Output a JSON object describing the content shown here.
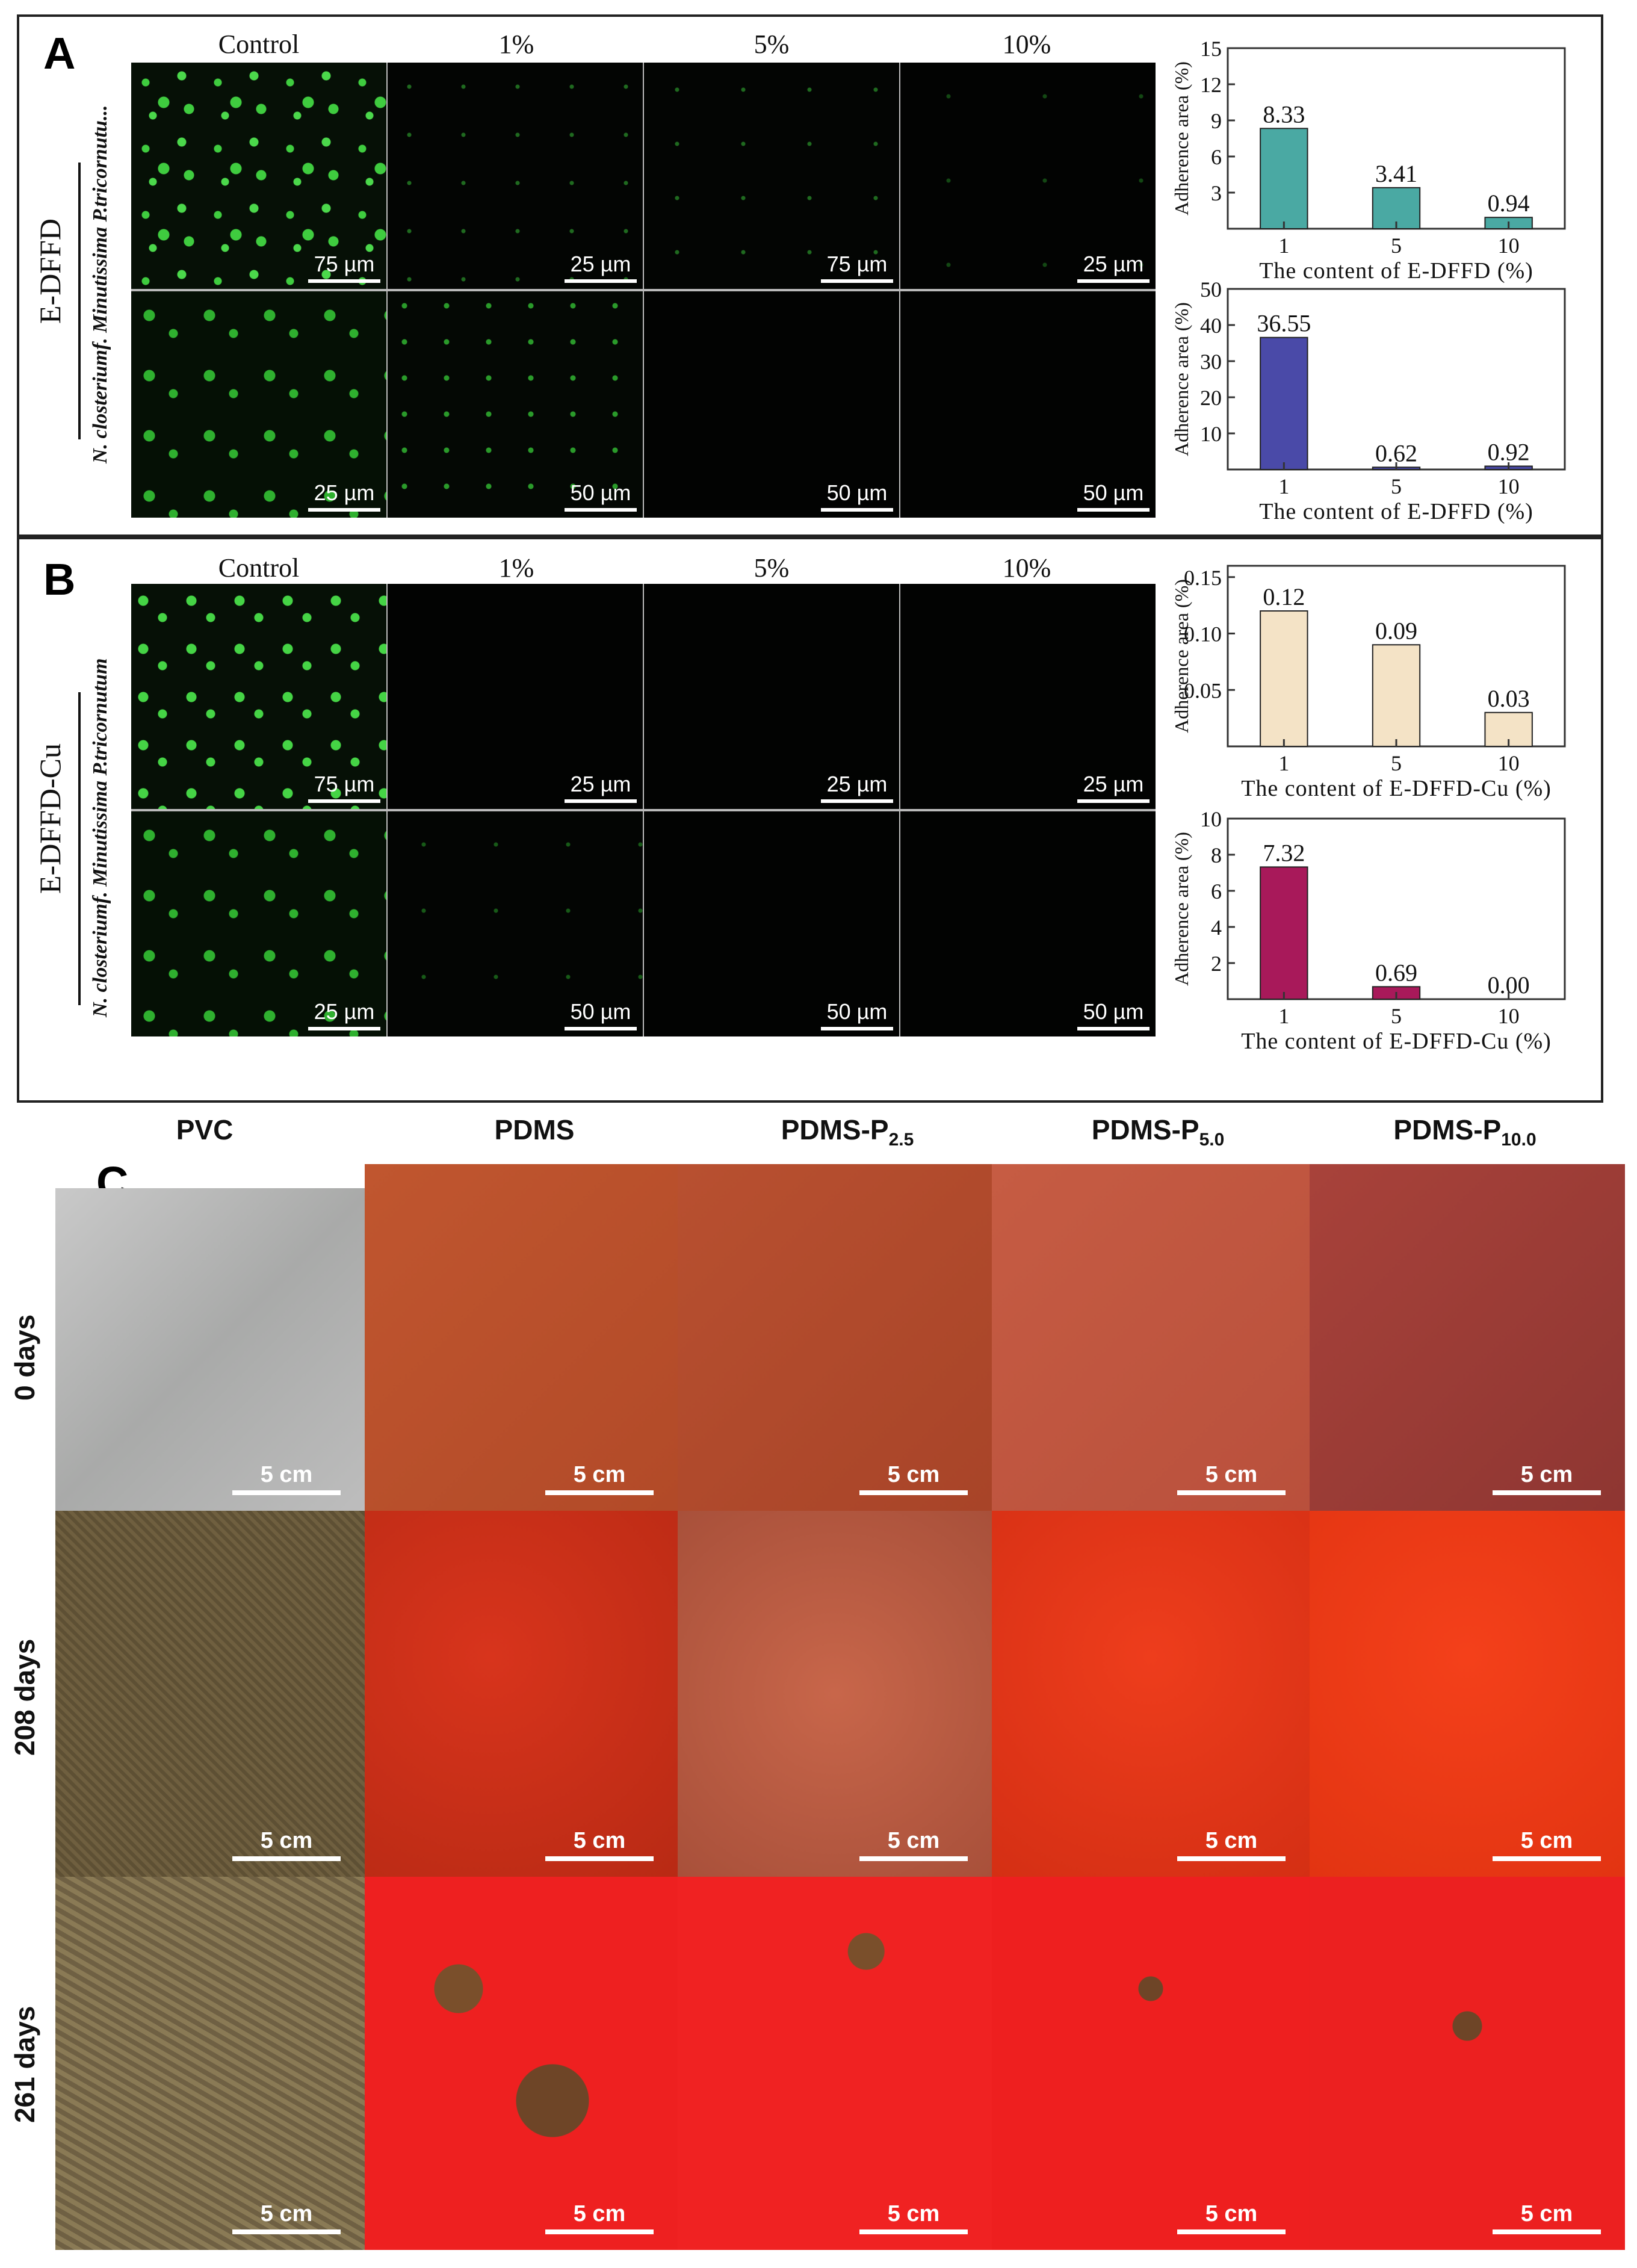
{
  "panel_a": {
    "letter": "A",
    "columns": [
      "Control",
      "1%",
      "5%",
      "10%"
    ],
    "material_label": "E-DFFD",
    "species_label": "N. closteriumf. Minutissima P.tricornutu...",
    "row1_scales": [
      "75 µm",
      "25 µm",
      "75 µm",
      "25 µm"
    ],
    "row2_scales": [
      "25 µm",
      "50 µm",
      "50 µm",
      "50 µm"
    ]
  },
  "panel_b": {
    "letter": "B",
    "columns": [
      "Control",
      "1%",
      "5%",
      "10%"
    ],
    "material_label": "E-DFFD-Cu",
    "species_label": "N. closteriumf. Minutissima P.tricornutum",
    "row1_scales": [
      "75 µm",
      "25 µm",
      "25 µm",
      "25 µm"
    ],
    "row2_scales": [
      "25 µm",
      "50 µm",
      "50 µm",
      "50 µm"
    ]
  },
  "panel_c": {
    "letter": "C",
    "columns": [
      {
        "base": "PVC",
        "sub": ""
      },
      {
        "base": "PDMS",
        "sub": ""
      },
      {
        "base": "PDMS-P",
        "sub": "2.5"
      },
      {
        "base": "PDMS-P",
        "sub": "5.0"
      },
      {
        "base": "PDMS-P",
        "sub": "10.0"
      }
    ],
    "rows": [
      "0 days",
      "208 days",
      "261 days"
    ],
    "scale": "5 cm"
  },
  "chart_data": [
    {
      "type": "bar",
      "categories": [
        "1",
        "5",
        "10"
      ],
      "values": [
        8.33,
        3.41,
        0.94
      ],
      "labels": [
        "8.33",
        "3.41",
        "0.94"
      ],
      "xlabel": "The content of E-DFFD (%)",
      "ylabel": "Adherence area (%)",
      "ylim": [
        0,
        15
      ],
      "ticks": [
        "3",
        "6",
        "9",
        "12",
        "15"
      ],
      "tick_values": [
        3,
        6,
        9,
        12,
        15
      ],
      "color": "#4aa9a3"
    },
    {
      "type": "bar",
      "categories": [
        "1",
        "5",
        "10"
      ],
      "values": [
        36.55,
        0.62,
        0.92
      ],
      "labels": [
        "36.55",
        "0.62",
        "0.92"
      ],
      "xlabel": "The content of E-DFFD (%)",
      "ylabel": "Adherence area (%)",
      "ylim": [
        0,
        50
      ],
      "ticks": [
        "10",
        "20",
        "30",
        "40",
        "50"
      ],
      "tick_values": [
        10,
        20,
        30,
        40,
        50
      ],
      "color": "#4a4aa8"
    },
    {
      "type": "bar",
      "categories": [
        "1",
        "5",
        "10"
      ],
      "values": [
        0.12,
        0.09,
        0.03
      ],
      "labels": [
        "0.12",
        "0.09",
        "0.03"
      ],
      "xlabel": "The content of E-DFFD-Cu (%)",
      "ylabel": "Adherence area (%)",
      "ylim": [
        0,
        0.16
      ],
      "ticks": [
        "0.05",
        "0.10",
        "0.15"
      ],
      "tick_values": [
        0.05,
        0.1,
        0.15
      ],
      "color": "#f4e3c6"
    },
    {
      "type": "bar",
      "categories": [
        "1",
        "5",
        "10"
      ],
      "values": [
        7.32,
        0.69,
        0.0
      ],
      "labels": [
        "7.32",
        "0.69",
        "0.00"
      ],
      "xlabel": "The content of E-DFFD-Cu (%)",
      "ylabel": "Adherence area (%)",
      "ylim": [
        0,
        10
      ],
      "ticks": [
        "2",
        "4",
        "6",
        "8",
        "10"
      ],
      "tick_values": [
        2,
        4,
        6,
        8,
        10
      ],
      "color": "#a8195a"
    }
  ]
}
